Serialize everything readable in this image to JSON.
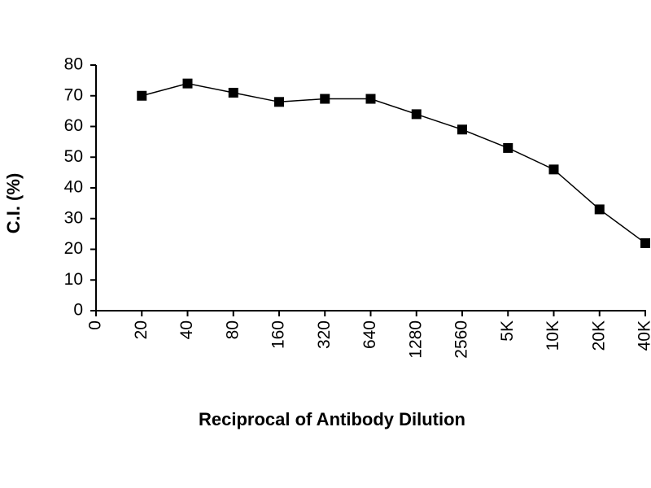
{
  "chart_data": {
    "type": "line",
    "x_label": "Reciprocal of Antibody Dilution",
    "y_label": "C.I. (%)",
    "categories": [
      "0",
      "20",
      "40",
      "80",
      "160",
      "320",
      "640",
      "1280",
      "2560",
      "5K",
      "10K",
      "20K",
      "40K"
    ],
    "values": [
      null,
      70,
      74,
      71,
      68,
      69,
      69,
      64,
      59,
      53,
      46,
      33,
      22
    ],
    "color": "#000000",
    "ylim": [
      0,
      80
    ],
    "yticks": [
      0,
      10,
      20,
      30,
      40,
      50,
      60,
      70,
      80
    ],
    "grid": false
  }
}
